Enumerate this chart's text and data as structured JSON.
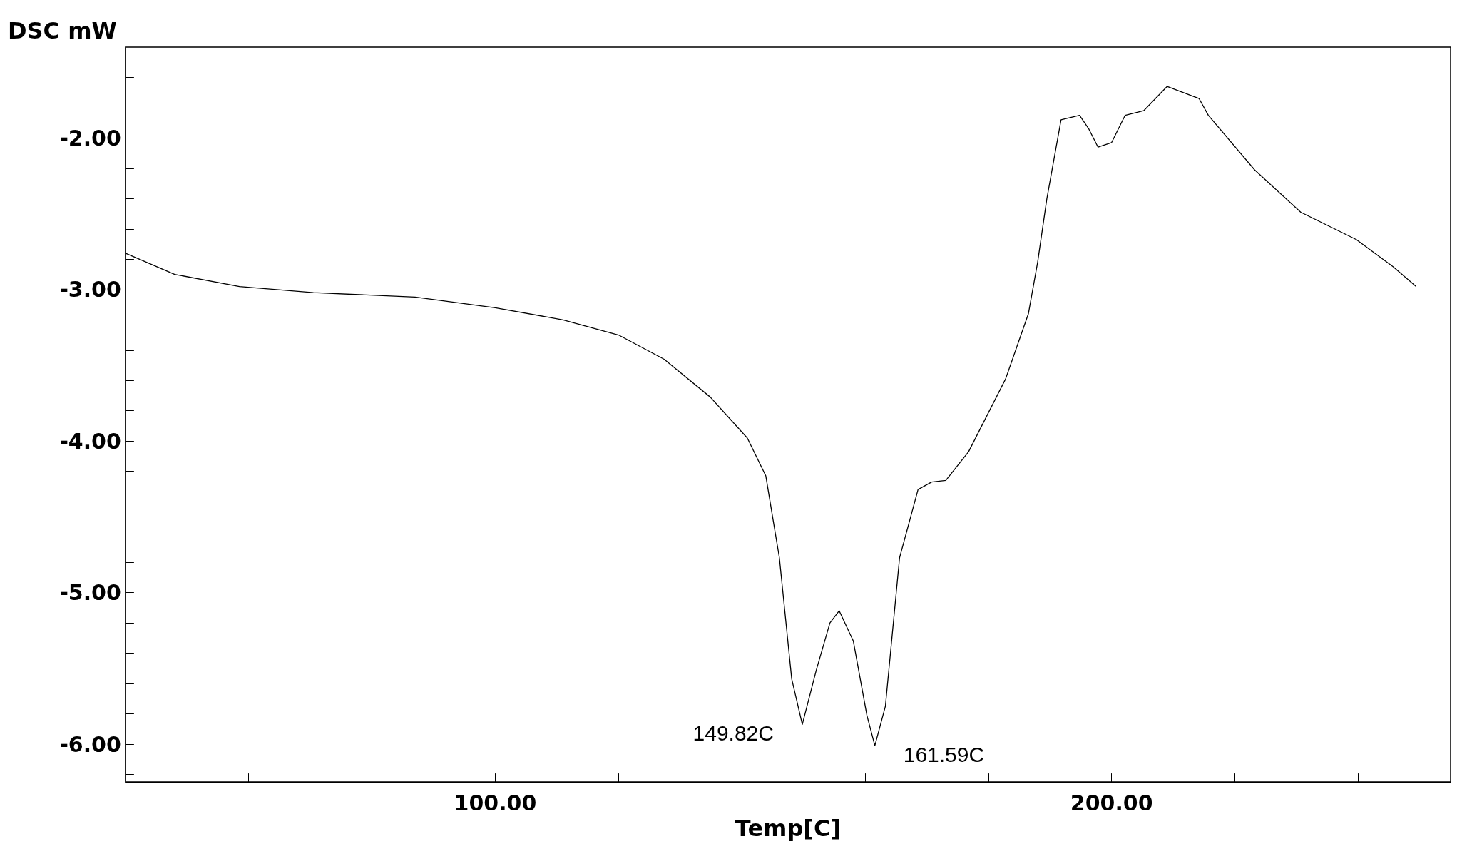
{
  "chart_data": {
    "type": "line",
    "xlabel": "Temp[C]",
    "ylabel": "DSC mW",
    "xlim": [
      40,
      255
    ],
    "xticks": [
      {
        "value": 40,
        "label": null
      },
      {
        "value": 60,
        "label": null
      },
      {
        "value": 80,
        "label": null
      },
      {
        "value": 100,
        "label": "100.00"
      },
      {
        "value": 120,
        "label": null
      },
      {
        "value": 140,
        "label": null
      },
      {
        "value": 160,
        "label": null
      },
      {
        "value": 180,
        "label": null
      },
      {
        "value": 200,
        "label": "200.00"
      },
      {
        "value": 220,
        "label": null
      },
      {
        "value": 240,
        "label": null
      }
    ],
    "ylim": [
      -6.25,
      -1.4
    ],
    "yticks": [
      {
        "value": -6.2,
        "label": null
      },
      {
        "value": -6,
        "label": "-6.00"
      },
      {
        "value": -5.8,
        "label": null
      },
      {
        "value": -5.6,
        "label": null
      },
      {
        "value": -5.4,
        "label": null
      },
      {
        "value": -5.2,
        "label": null
      },
      {
        "value": -5,
        "label": "-5.00"
      },
      {
        "value": -4.8,
        "label": null
      },
      {
        "value": -4.6,
        "label": null
      },
      {
        "value": -4.4,
        "label": null
      },
      {
        "value": -4.2,
        "label": null
      },
      {
        "value": -4,
        "label": "-4.00"
      },
      {
        "value": -3.8,
        "label": null
      },
      {
        "value": -3.6,
        "label": null
      },
      {
        "value": -3.4,
        "label": null
      },
      {
        "value": -3.2,
        "label": null
      },
      {
        "value": -3,
        "label": "-3.00"
      },
      {
        "value": -2.8,
        "label": null
      },
      {
        "value": -2.6,
        "label": null
      },
      {
        "value": -2.4,
        "label": null
      },
      {
        "value": -2.2,
        "label": null
      },
      {
        "value": -2,
        "label": "-2.00"
      },
      {
        "value": -1.8,
        "label": null
      },
      {
        "value": -1.6,
        "label": null
      }
    ],
    "marker": "none",
    "line_style": "solid",
    "grid": false,
    "series": [
      {
        "color": "#000000",
        "x": [
          40,
          48,
          58.5,
          70.5,
          87,
          100,
          111,
          120,
          127.4,
          134.9,
          140.9,
          143.9,
          146.1,
          148.1,
          149.82,
          152.1,
          154.3,
          155.8,
          158.1,
          160.3,
          161.59,
          163.3,
          165.6,
          168.6,
          170.8,
          173.1,
          176.8,
          182.8,
          186.5,
          188,
          189.5,
          191.8,
          194.8,
          196.3,
          197.8,
          200,
          202.2,
          205.2,
          209,
          214.2,
          215.7,
          223.2,
          230.7,
          239.7,
          245.7,
          249.4
        ],
        "values": [
          -2.76,
          -2.9,
          -2.98,
          -3.02,
          -3.05,
          -3.12,
          -3.2,
          -3.3,
          -3.46,
          -3.71,
          -3.98,
          -4.23,
          -4.77,
          -5.57,
          -5.87,
          -5.51,
          -5.2,
          -5.12,
          -5.32,
          -5.81,
          -6.01,
          -5.75,
          -4.77,
          -4.32,
          -4.27,
          -4.26,
          -4.07,
          -3.59,
          -3.16,
          -2.82,
          -2.4,
          -1.88,
          -1.85,
          -1.94,
          -2.06,
          -2.03,
          -1.85,
          -1.82,
          -1.66,
          -1.74,
          -1.85,
          -2.21,
          -2.49,
          -2.67,
          -2.85,
          -2.98
        ]
      }
    ],
    "annotations": [
      {
        "text": "149.82C",
        "x": 149.82,
        "y": -5.87
      },
      {
        "text": "161.59C",
        "x": 161.59,
        "y": -6.01
      }
    ]
  }
}
